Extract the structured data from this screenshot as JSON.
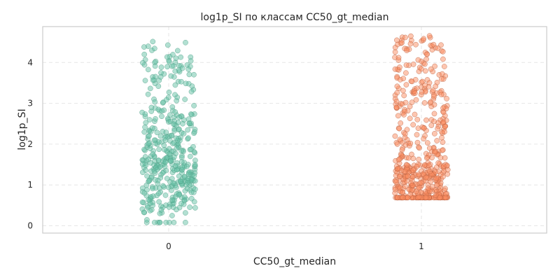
{
  "chart_data": {
    "type": "scatter",
    "subtype": "strip",
    "title": "log1p_SI по классам CC50_gt_median",
    "xlabel": "CC50_gt_median",
    "ylabel": "log1p_SI",
    "categories": [
      "0",
      "1"
    ],
    "ylim": [
      -0.18,
      4.88
    ],
    "yticks": [
      0,
      1,
      2,
      3,
      4
    ],
    "grid": true,
    "series": [
      {
        "category": "0",
        "color": "#66c2a5",
        "edge_color": "#4f9c84",
        "opacity": 0.5,
        "point_count": 420,
        "y_range": [
          0.08,
          4.52
        ],
        "dense_band": [
          0.6,
          2.8
        ]
      },
      {
        "category": "1",
        "color": "#fc8d62",
        "edge_color": "#b65f40",
        "opacity": 0.5,
        "point_count": 520,
        "y_range": [
          0.69,
          4.66
        ],
        "dense_band": [
          0.69,
          1.5
        ]
      }
    ]
  }
}
